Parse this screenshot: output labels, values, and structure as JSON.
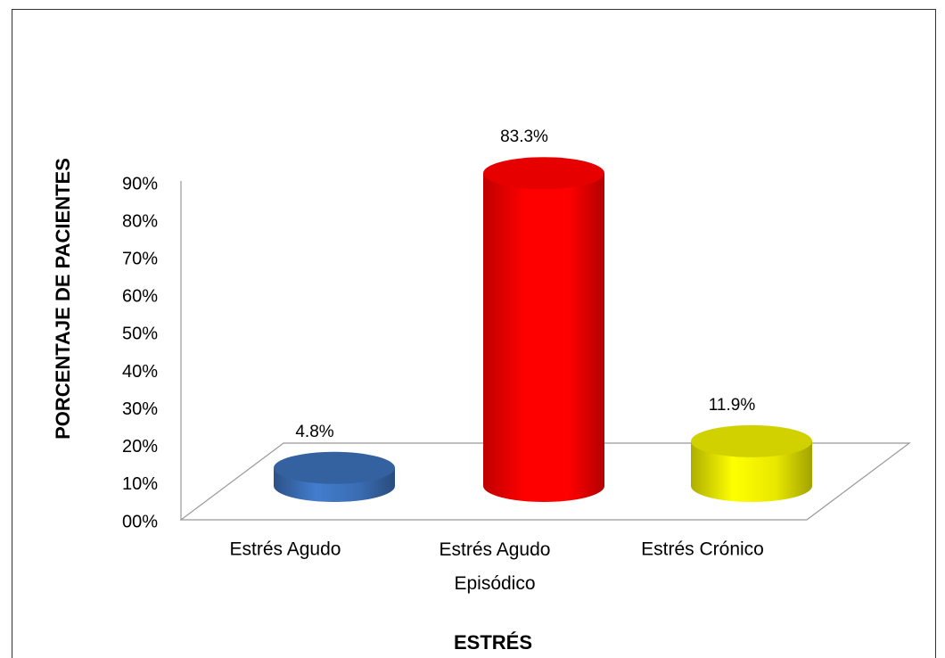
{
  "chart_data": {
    "type": "bar3d",
    "categories": [
      "Estrés Agudo",
      "Estrés Agudo Episódico",
      "Estrés Crónico"
    ],
    "values": [
      4.8,
      83.3,
      11.9
    ],
    "value_labels": [
      "4.8%",
      "83.3%",
      "11.9%"
    ],
    "colors": [
      "#3a6db3",
      "#ff0000",
      "#e8e800"
    ],
    "ylim": [
      0,
      90
    ],
    "yticks": [
      {
        "value": 0,
        "label": "00%"
      },
      {
        "value": 10,
        "label": "10%"
      },
      {
        "value": 20,
        "label": "20%"
      },
      {
        "value": 30,
        "label": "30%"
      },
      {
        "value": 40,
        "label": "40%"
      },
      {
        "value": 50,
        "label": "50%"
      },
      {
        "value": 60,
        "label": "60%"
      },
      {
        "value": 70,
        "label": "70%"
      },
      {
        "value": 80,
        "label": "80%"
      },
      {
        "value": 90,
        "label": "90%"
      }
    ],
    "ylabel": "PORCENTAJE DE  PACIENTES",
    "xlabel": "ESTRÉS"
  }
}
